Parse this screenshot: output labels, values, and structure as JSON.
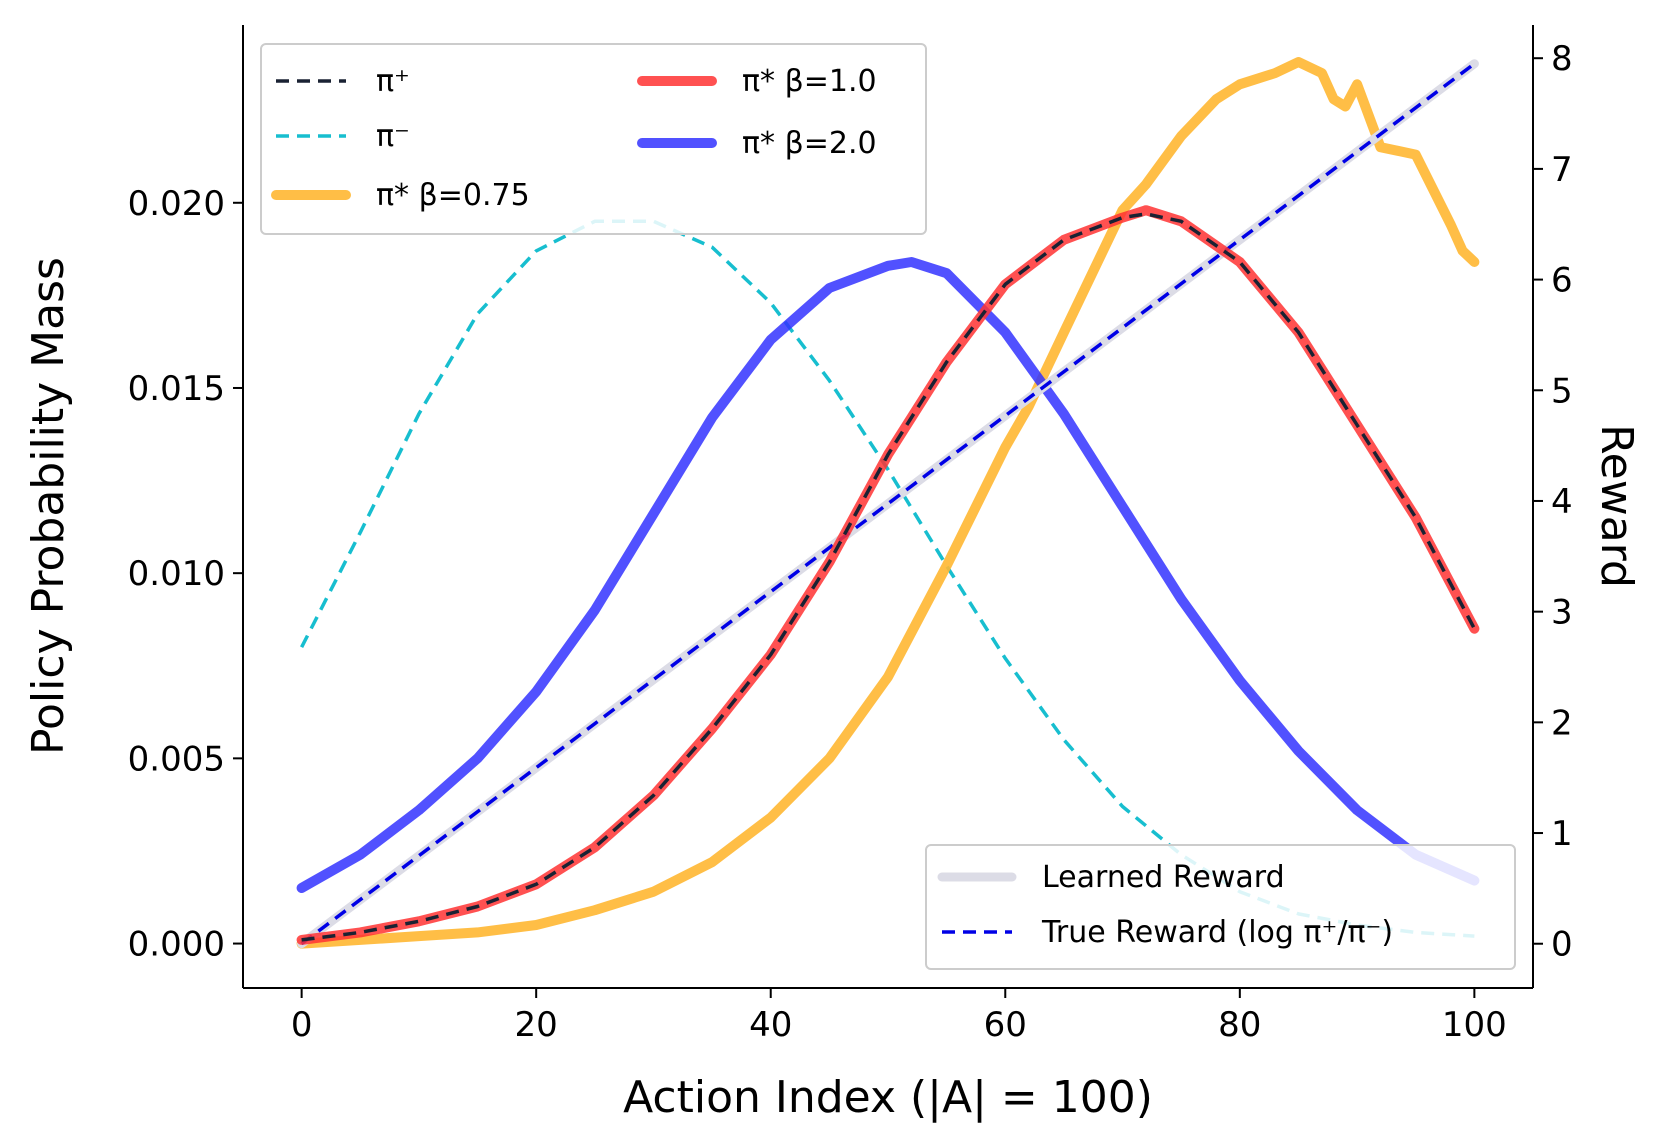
{
  "chart_data": {
    "type": "line",
    "title": "",
    "xlabel": "Action Index (|A| = 100)",
    "ylabel_left": "Policy Probability Mass",
    "ylabel_right": "Reward",
    "xlim": [
      -5,
      105
    ],
    "ylim_left": [
      -0.0012,
      0.0248
    ],
    "ylim_right": [
      -0.4,
      8.3
    ],
    "xticks": [
      0,
      20,
      40,
      60,
      80,
      100
    ],
    "xtick_labels": [
      "0",
      "20",
      "40",
      "60",
      "80",
      "100"
    ],
    "yticks_left": [
      0.0,
      0.005,
      0.01,
      0.015,
      0.02
    ],
    "ytick_labels_left": [
      "0.000",
      "0.005",
      "0.010",
      "0.015",
      "0.020"
    ],
    "yticks_right": [
      0,
      1,
      2,
      3,
      4,
      5,
      6,
      7,
      8
    ],
    "ytick_labels_right": [
      "0",
      "1",
      "2",
      "3",
      "4",
      "5",
      "6",
      "7",
      "8"
    ],
    "grid": false,
    "colors": {
      "pi_plus": "#1a2233",
      "pi_minus": "#17becf",
      "beta_075": "#ffb732",
      "beta_10": "#ff3333",
      "beta_20": "#3333ff",
      "learned_reward": "#dcdce6",
      "true_reward": "#0000e6"
    },
    "series": [
      {
        "name": "π⁺",
        "axis": "left",
        "style": "dashed",
        "x": [
          0,
          5,
          10,
          15,
          20,
          25,
          30,
          35,
          40,
          45,
          50,
          55,
          60,
          65,
          70,
          72,
          75,
          80,
          85,
          90,
          95,
          100
        ],
        "values": [
          0.0001,
          0.0003,
          0.0006,
          0.001,
          0.0016,
          0.0026,
          0.004,
          0.0058,
          0.0078,
          0.0103,
          0.0132,
          0.0157,
          0.0178,
          0.019,
          0.0196,
          0.0197,
          0.0195,
          0.0184,
          0.0165,
          0.014,
          0.0115,
          0.0085
        ]
      },
      {
        "name": "π⁻",
        "axis": "left",
        "style": "dashed",
        "x": [
          0,
          5,
          10,
          15,
          20,
          25,
          30,
          35,
          40,
          45,
          50,
          55,
          60,
          65,
          70,
          75,
          80,
          85,
          90,
          95,
          100
        ],
        "values": [
          0.008,
          0.0111,
          0.0143,
          0.017,
          0.0187,
          0.0195,
          0.0195,
          0.0188,
          0.0173,
          0.0152,
          0.0128,
          0.0102,
          0.0077,
          0.0055,
          0.0037,
          0.0024,
          0.0014,
          0.0008,
          0.0005,
          0.0003,
          0.0002
        ]
      },
      {
        "name": "π* β=0.75",
        "axis": "left",
        "style": "solid",
        "x": [
          0,
          5,
          10,
          15,
          20,
          25,
          30,
          35,
          40,
          45,
          50,
          55,
          60,
          62,
          65,
          70,
          72,
          75,
          78,
          80,
          83,
          85,
          87,
          88,
          89,
          90,
          92,
          95,
          98,
          99,
          100
        ],
        "values": [
          0.0,
          0.0001,
          0.0002,
          0.0003,
          0.0005,
          0.0009,
          0.0014,
          0.0022,
          0.0034,
          0.005,
          0.0072,
          0.0102,
          0.0134,
          0.0145,
          0.0165,
          0.0198,
          0.0205,
          0.0218,
          0.0228,
          0.0232,
          0.0235,
          0.0238,
          0.0235,
          0.0228,
          0.0226,
          0.0232,
          0.0215,
          0.0213,
          0.0194,
          0.0187,
          0.0184
        ]
      },
      {
        "name": "π* β=1.0",
        "axis": "left",
        "style": "solid",
        "x": [
          0,
          5,
          10,
          15,
          20,
          25,
          30,
          35,
          40,
          45,
          50,
          55,
          60,
          65,
          70,
          72,
          75,
          80,
          85,
          90,
          95,
          100
        ],
        "values": [
          0.0001,
          0.0003,
          0.0006,
          0.001,
          0.0016,
          0.0026,
          0.004,
          0.0058,
          0.0078,
          0.0103,
          0.0132,
          0.0157,
          0.0178,
          0.019,
          0.0196,
          0.0198,
          0.0195,
          0.0184,
          0.0165,
          0.014,
          0.0115,
          0.0085
        ]
      },
      {
        "name": "π* β=2.0",
        "axis": "left",
        "style": "solid",
        "x": [
          0,
          5,
          10,
          15,
          20,
          25,
          30,
          35,
          40,
          45,
          50,
          52,
          55,
          60,
          65,
          70,
          75,
          80,
          85,
          90,
          95,
          100
        ],
        "values": [
          0.0015,
          0.0024,
          0.0036,
          0.005,
          0.0068,
          0.009,
          0.0116,
          0.0142,
          0.0163,
          0.0177,
          0.0183,
          0.0184,
          0.0181,
          0.0165,
          0.0143,
          0.0118,
          0.0093,
          0.0071,
          0.0052,
          0.0036,
          0.0024,
          0.0017
        ]
      },
      {
        "name": "Learned Reward",
        "axis": "right",
        "style": "solid",
        "x": [
          0,
          100
        ],
        "values": [
          0.0,
          7.95
        ]
      },
      {
        "name": "True Reward (log π⁺/π⁻)",
        "axis": "right",
        "style": "dashed",
        "x": [
          0,
          100
        ],
        "values": [
          0.0,
          7.95
        ]
      }
    ],
    "legend_top": {
      "placement": "top-left",
      "entries": [
        {
          "label": "π⁺",
          "series": "π⁺"
        },
        {
          "label": "π⁻",
          "series": "π⁻"
        },
        {
          "label": "π* β=0.75",
          "series": "π* β=0.75"
        },
        {
          "label": "π* β=1.0",
          "series": "π* β=1.0"
        },
        {
          "label": "π* β=2.0",
          "series": "π* β=2.0"
        }
      ]
    },
    "legend_bottom": {
      "placement": "bottom-right",
      "entries": [
        {
          "label": "Learned Reward",
          "series": "Learned Reward"
        },
        {
          "label": "True Reward (log π⁺/π⁻)",
          "series": "True Reward (log π⁺/π⁻)"
        }
      ]
    }
  }
}
